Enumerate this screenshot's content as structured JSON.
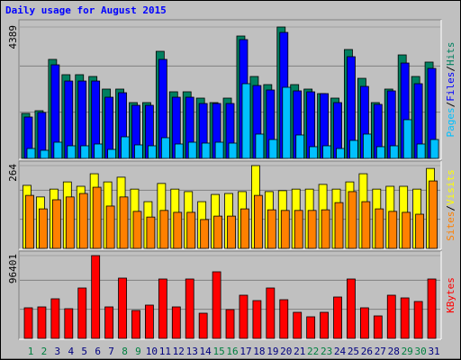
{
  "title": "Daily usage for August 2015",
  "chart_data": [
    {
      "type": "bar",
      "ylim": [
        0,
        4389
      ],
      "yticks": [
        4389
      ],
      "legend_separator": "/",
      "series": [
        {
          "name": "Hits",
          "color": "#008060",
          "values": [
            1503,
            1593,
            3307,
            2796,
            2796,
            2736,
            2315,
            2315,
            1864,
            1864,
            3577,
            2225,
            2225,
            2014,
            1864,
            2014,
            4088,
            2736,
            2465,
            4389,
            2465,
            2315,
            2164,
            2014,
            3637,
            2675,
            1864,
            2315,
            3457,
            2736,
            3217
          ]
        },
        {
          "name": "Files",
          "color": "#0000ff",
          "values": [
            1383,
            1533,
            3126,
            2585,
            2585,
            2585,
            2044,
            2194,
            1774,
            1774,
            3307,
            2044,
            2044,
            1834,
            1834,
            1834,
            3968,
            2435,
            2285,
            4208,
            2255,
            2224,
            2164,
            1864,
            3397,
            2405,
            1804,
            2255,
            3186,
            2495,
            3006
          ]
        },
        {
          "name": "Pages",
          "color": "#00c0ff",
          "values": [
            331,
            271,
            541,
            421,
            421,
            481,
            301,
            721,
            451,
            421,
            691,
            481,
            541,
            511,
            541,
            511,
            2495,
            812,
            631,
            2375,
            782,
            391,
            421,
            331,
            601,
            812,
            391,
            421,
            1293,
            481,
            631
          ]
        }
      ]
    },
    {
      "type": "bar",
      "ylim": [
        0,
        264
      ],
      "yticks": [
        264
      ],
      "legend_separator": "/",
      "series": [
        {
          "name": "Visits",
          "color": "#ffff00",
          "values": [
            201,
            164,
            189,
            212,
            198,
            238,
            212,
            227,
            189,
            149,
            207,
            189,
            181,
            149,
            172,
            175,
            181,
            264,
            181,
            184,
            189,
            189,
            204,
            189,
            212,
            238,
            189,
            198,
            198,
            189,
            255
          ]
        },
        {
          "name": "Sites",
          "color": "#ff8000",
          "values": [
            169,
            126,
            155,
            164,
            175,
            195,
            135,
            164,
            118,
            100,
            121,
            115,
            115,
            92,
            103,
            103,
            126,
            169,
            123,
            121,
            121,
            121,
            123,
            146,
            181,
            149,
            126,
            118,
            115,
            109,
            215
          ]
        }
      ]
    },
    {
      "type": "bar",
      "ylim": [
        0,
        96401
      ],
      "yticks": [
        96401
      ],
      "categories": [
        "1",
        "2",
        "3",
        "4",
        "5",
        "6",
        "7",
        "8",
        "9",
        "10",
        "11",
        "12",
        "13",
        "14",
        "15",
        "16",
        "17",
        "18",
        "19",
        "20",
        "21",
        "22",
        "23",
        "24",
        "25",
        "26",
        "27",
        "28",
        "29",
        "30",
        "31"
      ],
      "category_colors": [
        "#008040",
        "#008040",
        "#000080",
        "#000080",
        "#000080",
        "#000080",
        "#000080",
        "#008040",
        "#008040",
        "#000080",
        "#000080",
        "#000080",
        "#000080",
        "#000080",
        "#008040",
        "#008040",
        "#000080",
        "#000080",
        "#000080",
        "#000080",
        "#000080",
        "#008040",
        "#008040",
        "#000080",
        "#000080",
        "#000080",
        "#000080",
        "#000080",
        "#008040",
        "#008040",
        "#000080"
      ],
      "series": [
        {
          "name": "KBytes",
          "color": "#ff0000",
          "values": [
            35627,
            36675,
            46106,
            34579,
            58683,
            96401,
            36675,
            70209,
            32484,
            38771,
            69161,
            36675,
            69161,
            29340,
            77544,
            33532,
            50298,
            44012,
            58683,
            45059,
            30389,
            25149,
            30389,
            48203,
            69161,
            35627,
            26197,
            50298,
            47155,
            42963,
            69161
          ]
        }
      ]
    }
  ]
}
